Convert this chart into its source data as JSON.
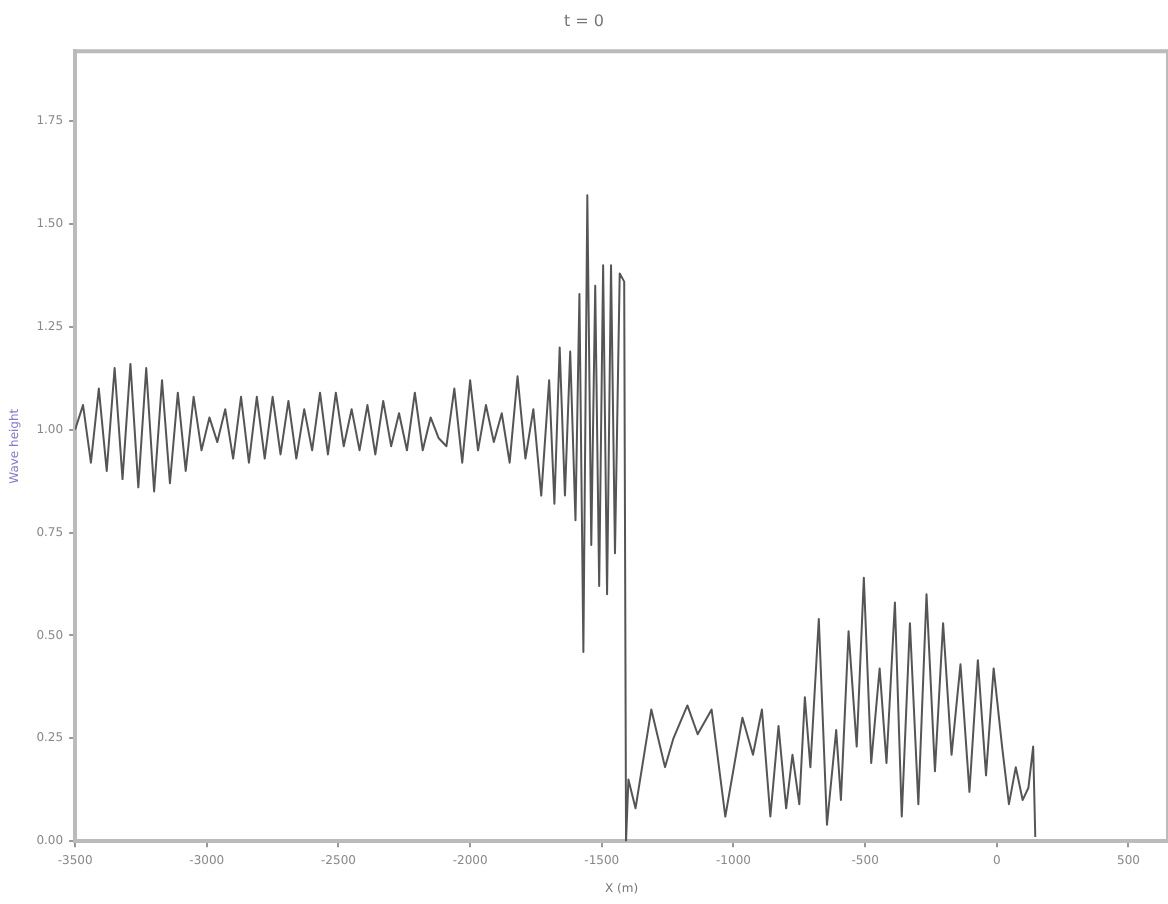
{
  "chart_data": {
    "type": "line",
    "title": "t = 0",
    "xlabel": "X (m)",
    "ylabel": "Wave height",
    "xlim": [
      -3500,
      650
    ],
    "xticks": [
      -3500,
      -3000,
      -2500,
      -2000,
      -1500,
      -1000,
      -500,
      0,
      500
    ],
    "ylim": [
      0,
      1.92
    ],
    "yticks": [
      {
        "value": 0,
        "label": "0.00"
      },
      {
        "value": 0.25,
        "label": "0.25"
      },
      {
        "value": 0.5,
        "label": "0.50"
      },
      {
        "value": 0.75,
        "label": "0.75"
      },
      {
        "value": 1,
        "label": "1.00"
      },
      {
        "value": 1.25,
        "label": "1.25"
      },
      {
        "value": 1.5,
        "label": "1.50"
      },
      {
        "value": 1.75,
        "label": "1.75"
      }
    ],
    "grid": false,
    "legend": false,
    "marker": "none",
    "line_style": "solid",
    "series": [
      {
        "color": "#555555",
        "x": [
          -3500,
          -3470,
          -3440,
          -3410,
          -3380,
          -3350,
          -3320,
          -3290,
          -3260,
          -3230,
          -3200,
          -3170,
          -3140,
          -3110,
          -3080,
          -3050,
          -3020,
          -2990,
          -2960,
          -2930,
          -2900,
          -2870,
          -2840,
          -2810,
          -2780,
          -2750,
          -2720,
          -2690,
          -2660,
          -2630,
          -2600,
          -2570,
          -2540,
          -2510,
          -2480,
          -2450,
          -2420,
          -2390,
          -2360,
          -2330,
          -2300,
          -2270,
          -2240,
          -2210,
          -2180,
          -2150,
          -2120,
          -2090,
          -2060,
          -2030,
          -2000,
          -1970,
          -1940,
          -1910,
          -1880,
          -1850,
          -1820,
          -1790,
          -1760,
          -1730,
          -1700,
          -1680,
          -1660,
          -1640,
          -1620,
          -1600,
          -1585,
          -1570,
          -1555,
          -1540,
          -1525,
          -1510,
          -1495,
          -1480,
          -1465,
          -1450,
          -1432,
          -1415,
          -1408,
          -1399,
          -1372,
          -1312,
          -1260,
          -1228,
          -1175,
          -1136,
          -1083,
          -1031,
          -966,
          -926,
          -892,
          -860,
          -829,
          -800,
          -776,
          -750,
          -729,
          -708,
          -676,
          -645,
          -610,
          -592,
          -563,
          -532,
          -505,
          -477,
          -445,
          -419,
          -387,
          -361,
          -330,
          -298,
          -267,
          -235,
          -204,
          -172,
          -138,
          -104,
          -72,
          -41,
          -12,
          20,
          46,
          72,
          98,
          120,
          138,
          146
        ],
        "values": [
          1.0,
          1.06,
          0.92,
          1.1,
          0.9,
          1.15,
          0.88,
          1.16,
          0.86,
          1.15,
          0.85,
          1.12,
          0.87,
          1.09,
          0.9,
          1.08,
          0.95,
          1.03,
          0.97,
          1.05,
          0.93,
          1.08,
          0.92,
          1.08,
          0.93,
          1.08,
          0.94,
          1.07,
          0.93,
          1.05,
          0.95,
          1.09,
          0.94,
          1.09,
          0.96,
          1.05,
          0.95,
          1.06,
          0.94,
          1.07,
          0.96,
          1.04,
          0.95,
          1.09,
          0.95,
          1.03,
          0.98,
          0.96,
          1.1,
          0.92,
          1.12,
          0.95,
          1.06,
          0.97,
          1.04,
          0.92,
          1.13,
          0.93,
          1.05,
          0.84,
          1.12,
          0.82,
          1.2,
          0.84,
          1.19,
          0.78,
          1.33,
          0.46,
          1.57,
          0.72,
          1.35,
          0.62,
          1.4,
          0.6,
          1.4,
          0.7,
          1.38,
          1.36,
          0.0,
          0.15,
          0.08,
          0.32,
          0.18,
          0.25,
          0.33,
          0.26,
          0.32,
          0.06,
          0.3,
          0.21,
          0.32,
          0.06,
          0.28,
          0.08,
          0.21,
          0.09,
          0.35,
          0.18,
          0.54,
          0.04,
          0.27,
          0.1,
          0.51,
          0.23,
          0.64,
          0.19,
          0.42,
          0.19,
          0.58,
          0.06,
          0.53,
          0.09,
          0.6,
          0.17,
          0.53,
          0.21,
          0.43,
          0.12,
          0.44,
          0.16,
          0.42,
          0.23,
          0.09,
          0.18,
          0.1,
          0.13,
          0.23,
          0.01
        ]
      }
    ]
  }
}
